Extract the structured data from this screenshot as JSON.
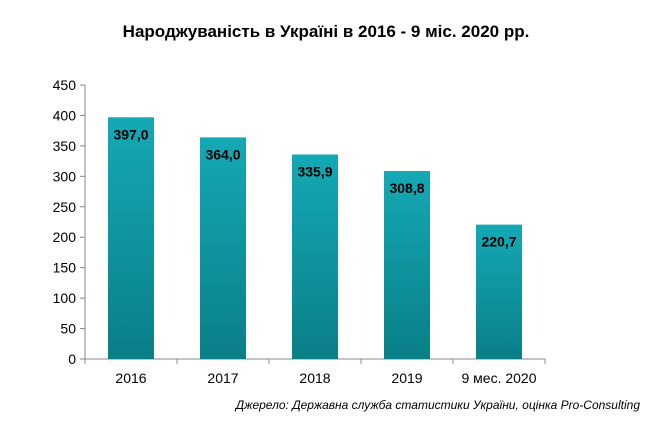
{
  "title": "Народжуваність в Україні в 2016 - 9 міс. 2020 рр.",
  "source": "Джерело: Державна служба статистики України, оцінка Pro-Consulting",
  "chart_data": {
    "type": "bar",
    "title": "Народжуваність в Україні в 2016 - 9 міс. 2020 рр.",
    "categories": [
      "2016",
      "2017",
      "2018",
      "2019",
      "9 мес. 2020"
    ],
    "values": [
      397.0,
      364.0,
      335.9,
      308.8,
      220.7
    ],
    "data_labels": [
      "397,0",
      "364,0",
      "335,9",
      "308,8",
      "220,7"
    ],
    "ylim": [
      0,
      450
    ],
    "yticks": [
      0,
      50,
      100,
      150,
      200,
      250,
      300,
      350,
      400,
      450
    ],
    "xlabel": "",
    "ylabel": "",
    "grid": false,
    "legend": "none",
    "bar_color_top": "#14a9b5",
    "bar_color_bottom": "#0a7f87"
  }
}
